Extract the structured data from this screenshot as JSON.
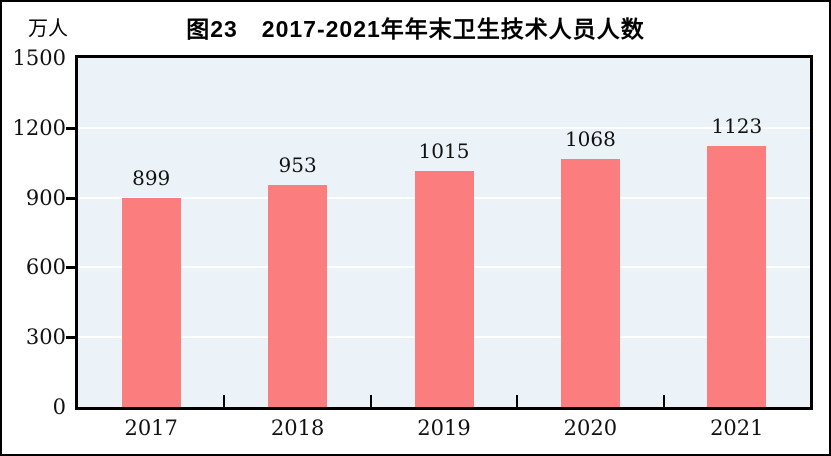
{
  "figure": {
    "title": "图23　2017-2021年年末卫生技术人员人数",
    "unit_label": "万人"
  },
  "chart_data": {
    "type": "bar",
    "title": "图23　2017-2021年年末卫生技术人员人数",
    "unit": "万人",
    "ylabel": "万人",
    "xlabel": "",
    "categories": [
      "2017",
      "2018",
      "2019",
      "2020",
      "2021"
    ],
    "values": [
      899,
      953,
      1015,
      1068,
      1123
    ],
    "data_labels": [
      "899",
      "953",
      "1015",
      "1068",
      "1123"
    ],
    "ylim": [
      0,
      1500
    ],
    "yticks": [
      0,
      300,
      600,
      900,
      1200,
      1500
    ],
    "grid": true,
    "legend_position": "none",
    "colors": {
      "bar": "#FC7D7D",
      "plot_background": "#ECF3F8",
      "gridline": "#FFFFFF",
      "axis": "#000000",
      "text": "#000000"
    }
  }
}
